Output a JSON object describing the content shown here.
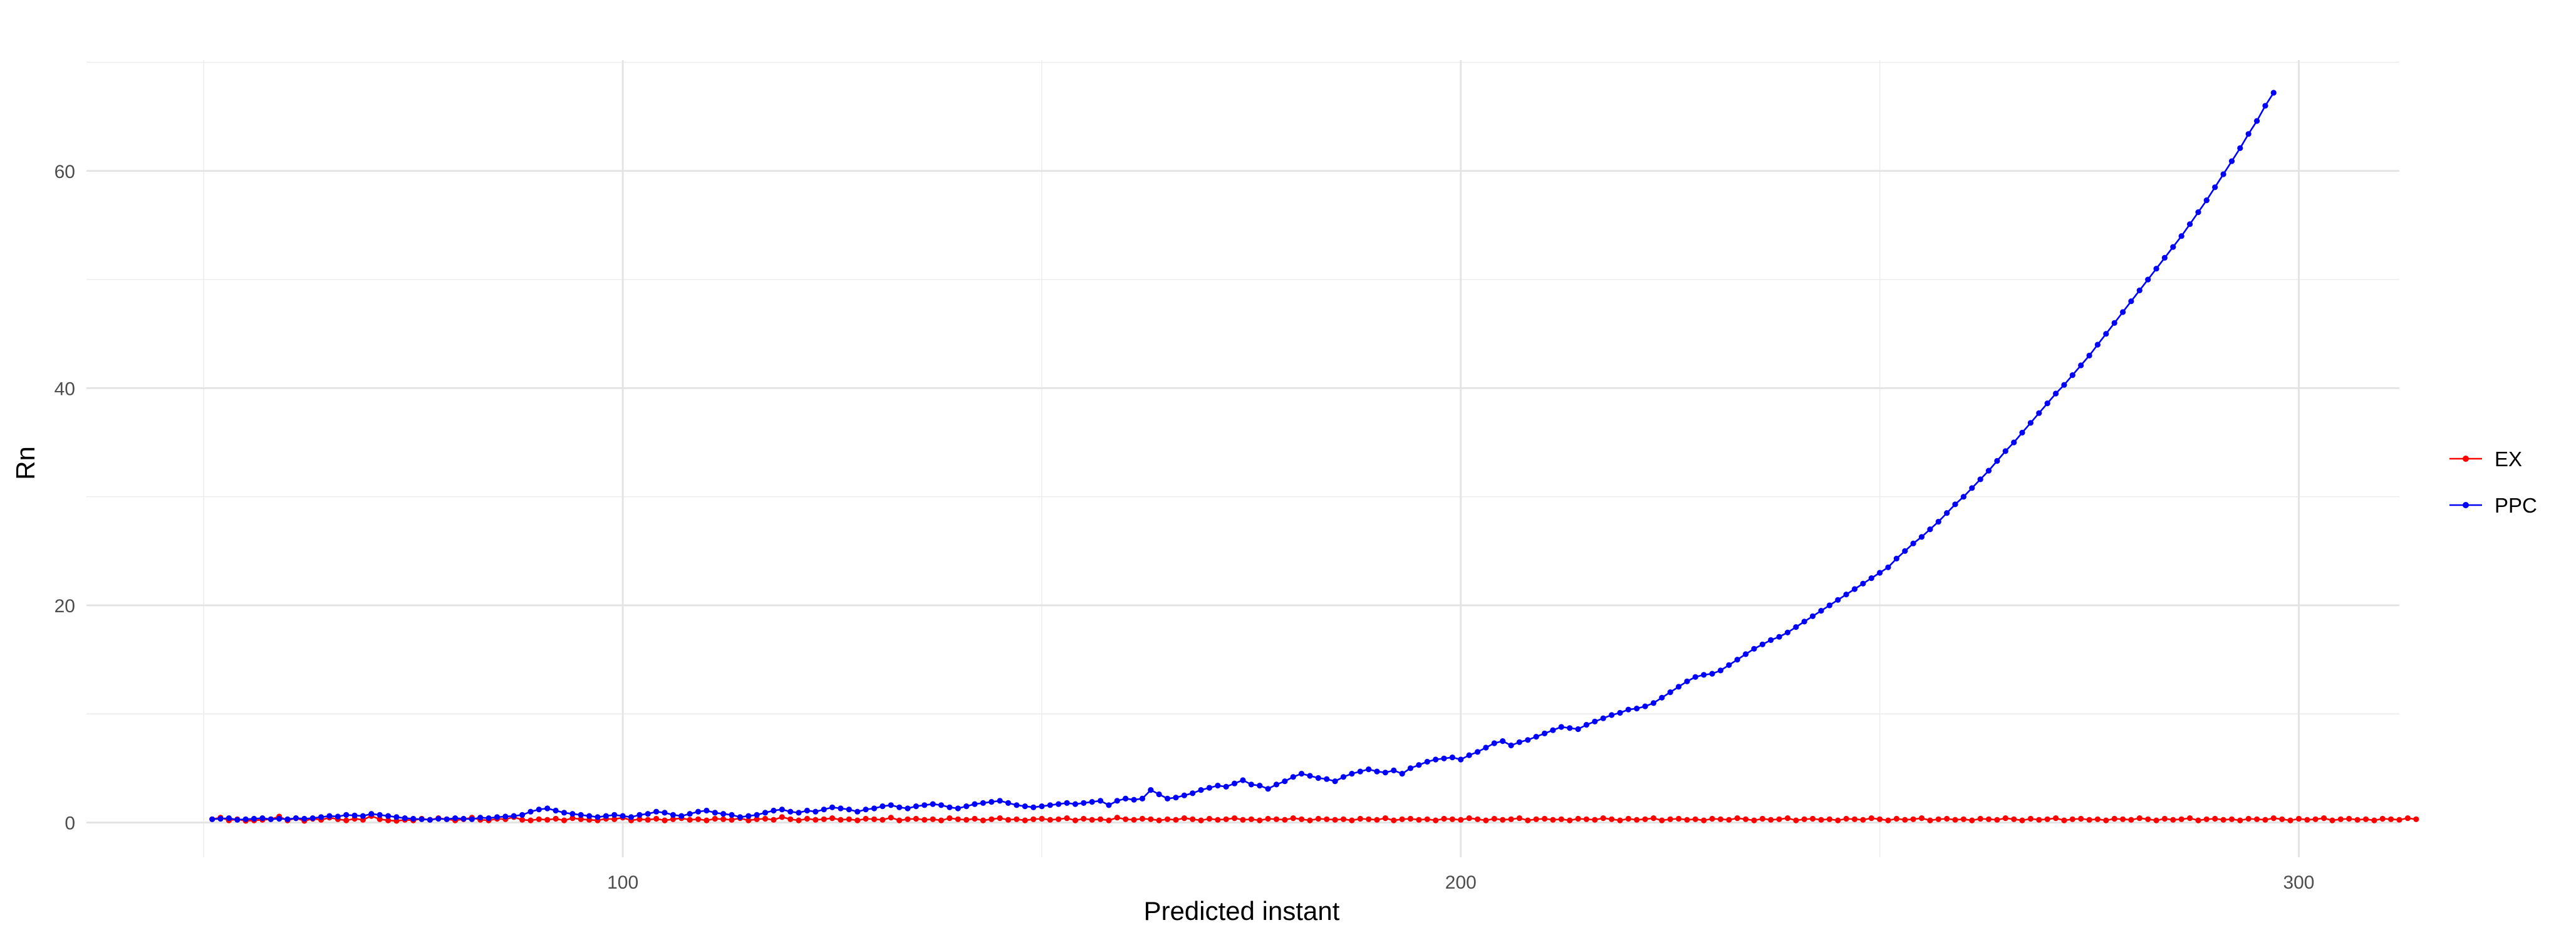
{
  "chart_data": {
    "type": "line",
    "title": "",
    "xlabel": "Predicted instant",
    "ylabel": "Rn",
    "xlim": [
      36,
      312
    ],
    "ylim": [
      -3.2,
      70.2
    ],
    "x_ticks": [
      100,
      200,
      300
    ],
    "x_tick_labels": [
      "100",
      "200",
      "300"
    ],
    "y_ticks": [
      0,
      20,
      40,
      60
    ],
    "y_tick_labels": [
      "0",
      "20",
      "40",
      "60"
    ],
    "grid": true,
    "legend_position": "right",
    "x_start": 51,
    "x_end": 300,
    "series": [
      {
        "name": "EX",
        "color": "#ff0000",
        "values": [
          0.3,
          0.45,
          0.2,
          0.3,
          0.15,
          0.2,
          0.25,
          0.3,
          0.55,
          0.2,
          0.4,
          0.15,
          0.35,
          0.25,
          0.45,
          0.3,
          0.2,
          0.35,
          0.25,
          0.6,
          0.3,
          0.2,
          0.15,
          0.25,
          0.2,
          0.35,
          0.25,
          0.4,
          0.3,
          0.2,
          0.3,
          0.45,
          0.25,
          0.2,
          0.35,
          0.3,
          0.5,
          0.25,
          0.2,
          0.3,
          0.25,
          0.35,
          0.2,
          0.4,
          0.3,
          0.25,
          0.2,
          0.35,
          0.3,
          0.45,
          0.2,
          0.3,
          0.25,
          0.35,
          0.2,
          0.3,
          0.4,
          0.25,
          0.3,
          0.2,
          0.35,
          0.3,
          0.25,
          0.4,
          0.2,
          0.3,
          0.35,
          0.25,
          0.5,
          0.3,
          0.2,
          0.35,
          0.25,
          0.3,
          0.4,
          0.25,
          0.3,
          0.2,
          0.35,
          0.3,
          0.25,
          0.45,
          0.2,
          0.3,
          0.35,
          0.25,
          0.3,
          0.2,
          0.4,
          0.3,
          0.25,
          0.35,
          0.2,
          0.3,
          0.4,
          0.25,
          0.3,
          0.2,
          0.3,
          0.35,
          0.25,
          0.3,
          0.4,
          0.2,
          0.35,
          0.25,
          0.3,
          0.2,
          0.45,
          0.3,
          0.25,
          0.35,
          0.3,
          0.2,
          0.3,
          0.25,
          0.4,
          0.3,
          0.2,
          0.35,
          0.25,
          0.3,
          0.4,
          0.25,
          0.3,
          0.2,
          0.35,
          0.3,
          0.25,
          0.4,
          0.3,
          0.2,
          0.35,
          0.3,
          0.25,
          0.3,
          0.2,
          0.35,
          0.3,
          0.25,
          0.4,
          0.2,
          0.3,
          0.35,
          0.25,
          0.3,
          0.2,
          0.35,
          0.3,
          0.25,
          0.4,
          0.3,
          0.2,
          0.35,
          0.25,
          0.3,
          0.4,
          0.2,
          0.3,
          0.35,
          0.25,
          0.3,
          0.2,
          0.35,
          0.3,
          0.25,
          0.4,
          0.3,
          0.2,
          0.35,
          0.25,
          0.3,
          0.4,
          0.2,
          0.3,
          0.35,
          0.25,
          0.3,
          0.2,
          0.35,
          0.3,
          0.25,
          0.4,
          0.3,
          0.2,
          0.35,
          0.25,
          0.3,
          0.4,
          0.2,
          0.3,
          0.35,
          0.25,
          0.3,
          0.2,
          0.35,
          0.3,
          0.25,
          0.4,
          0.3,
          0.2,
          0.35,
          0.25,
          0.3,
          0.4,
          0.2,
          0.3,
          0.35,
          0.25,
          0.3,
          0.2,
          0.35,
          0.3,
          0.25,
          0.4,
          0.3,
          0.2,
          0.35,
          0.25,
          0.3,
          0.4,
          0.2,
          0.3,
          0.35,
          0.25,
          0.3,
          0.2,
          0.35,
          0.3,
          0.25,
          0.4,
          0.3,
          0.2,
          0.35,
          0.25,
          0.3,
          0.4,
          0.2,
          0.3,
          0.35,
          0.25,
          0.3,
          0.2,
          0.35,
          0.3,
          0.25,
          0.4,
          0.3,
          0.2,
          0.35,
          0.25,
          0.3,
          0.4,
          0.2,
          0.3,
          0.35,
          0.25,
          0.3,
          0.2,
          0.35,
          0.3,
          0.25,
          0.4,
          0.3
        ]
      },
      {
        "name": "PPC",
        "color": "#0000ff",
        "values": [
          0.3,
          0.35,
          0.4,
          0.25,
          0.3,
          0.35,
          0.4,
          0.3,
          0.35,
          0.3,
          0.4,
          0.35,
          0.4,
          0.5,
          0.6,
          0.55,
          0.7,
          0.65,
          0.6,
          0.8,
          0.7,
          0.6,
          0.5,
          0.4,
          0.35,
          0.3,
          0.25,
          0.35,
          0.3,
          0.4,
          0.35,
          0.3,
          0.45,
          0.4,
          0.5,
          0.55,
          0.6,
          0.7,
          1.0,
          1.2,
          1.3,
          1.1,
          0.9,
          0.8,
          0.7,
          0.6,
          0.5,
          0.6,
          0.7,
          0.6,
          0.5,
          0.7,
          0.8,
          1.0,
          0.9,
          0.7,
          0.6,
          0.8,
          1.0,
          1.1,
          0.9,
          0.8,
          0.7,
          0.5,
          0.6,
          0.7,
          0.9,
          1.1,
          1.2,
          1.0,
          0.9,
          1.1,
          1.0,
          1.2,
          1.4,
          1.3,
          1.2,
          1.0,
          1.2,
          1.3,
          1.5,
          1.6,
          1.4,
          1.3,
          1.5,
          1.6,
          1.7,
          1.6,
          1.4,
          1.3,
          1.5,
          1.7,
          1.8,
          1.9,
          2.0,
          1.8,
          1.6,
          1.5,
          1.4,
          1.5,
          1.6,
          1.7,
          1.8,
          1.7,
          1.8,
          1.9,
          2.0,
          1.6,
          2.0,
          2.2,
          2.1,
          2.2,
          3.0,
          2.6,
          2.2,
          2.3,
          2.5,
          2.7,
          3.0,
          3.2,
          3.4,
          3.3,
          3.6,
          3.9,
          3.5,
          3.4,
          3.1,
          3.5,
          3.8,
          4.2,
          4.5,
          4.3,
          4.1,
          4.0,
          3.8,
          4.2,
          4.5,
          4.7,
          4.9,
          4.7,
          4.6,
          4.8,
          4.5,
          5.0,
          5.3,
          5.6,
          5.8,
          5.9,
          6.0,
          5.8,
          6.2,
          6.5,
          6.9,
          7.3,
          7.5,
          7.1,
          7.4,
          7.6,
          7.9,
          8.2,
          8.5,
          8.8,
          8.7,
          8.6,
          9.0,
          9.3,
          9.6,
          9.9,
          10.1,
          10.4,
          10.5,
          10.7,
          11.0,
          11.5,
          12.0,
          12.5,
          13.0,
          13.4,
          13.6,
          13.7,
          14.0,
          14.5,
          15.0,
          15.5,
          16.0,
          16.4,
          16.8,
          17.1,
          17.5,
          18.0,
          18.5,
          19.0,
          19.5,
          20.0,
          20.5,
          21.0,
          21.5,
          22.0,
          22.5,
          23.0,
          23.5,
          24.3,
          25.0,
          25.7,
          26.3,
          27.0,
          27.7,
          28.5,
          29.3,
          30.0,
          30.8,
          31.6,
          32.4,
          33.3,
          34.2,
          35.0,
          35.9,
          36.8,
          37.7,
          38.6,
          39.5,
          40.3,
          41.2,
          42.1,
          43.0,
          44.0,
          45.0,
          46.0,
          47.0,
          48.0,
          49.0,
          50.0,
          51.0,
          52.0,
          53.0,
          54.0,
          55.1,
          56.2,
          57.3,
          58.5,
          59.7,
          60.9,
          62.1,
          63.4,
          64.6,
          66.0,
          67.2
        ]
      }
    ]
  }
}
